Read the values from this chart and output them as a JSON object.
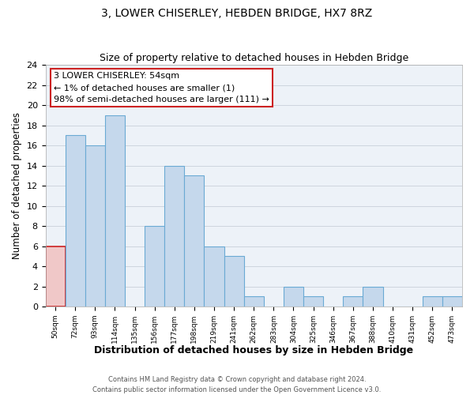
{
  "title": "3, LOWER CHISERLEY, HEBDEN BRIDGE, HX7 8RZ",
  "subtitle": "Size of property relative to detached houses in Hebden Bridge",
  "xlabel": "Distribution of detached houses by size in Hebden Bridge",
  "ylabel": "Number of detached properties",
  "footer_line1": "Contains HM Land Registry data © Crown copyright and database right 2024.",
  "footer_line2": "Contains public sector information licensed under the Open Government Licence v3.0.",
  "bin_labels": [
    "50sqm",
    "72sqm",
    "93sqm",
    "114sqm",
    "135sqm",
    "156sqm",
    "177sqm",
    "198sqm",
    "219sqm",
    "241sqm",
    "262sqm",
    "283sqm",
    "304sqm",
    "325sqm",
    "346sqm",
    "367sqm",
    "388sqm",
    "410sqm",
    "431sqm",
    "452sqm",
    "473sqm"
  ],
  "bin_values": [
    6,
    17,
    16,
    19,
    0,
    8,
    14,
    13,
    6,
    5,
    1,
    0,
    2,
    1,
    0,
    1,
    2,
    0,
    0,
    1,
    1
  ],
  "bar_color": "#c5d8ec",
  "bar_edge_color": "#6aaad4",
  "highlight_bar_index": 0,
  "highlight_bar_color": "#f0c8c8",
  "highlight_bar_edge_color": "#cc2222",
  "annotation_title": "3 LOWER CHISERLEY: 54sqm",
  "annotation_line1": "← 1% of detached houses are smaller (1)",
  "annotation_line2": "98% of semi-detached houses are larger (111) →",
  "annotation_box_edge_color": "#cc2222",
  "ylim": [
    0,
    24
  ],
  "yticks": [
    0,
    2,
    4,
    6,
    8,
    10,
    12,
    14,
    16,
    18,
    20,
    22,
    24
  ],
  "bg_color": "#edf2f8",
  "fig_bg_color": "#ffffff",
  "title_fontsize": 10,
  "subtitle_fontsize": 9
}
